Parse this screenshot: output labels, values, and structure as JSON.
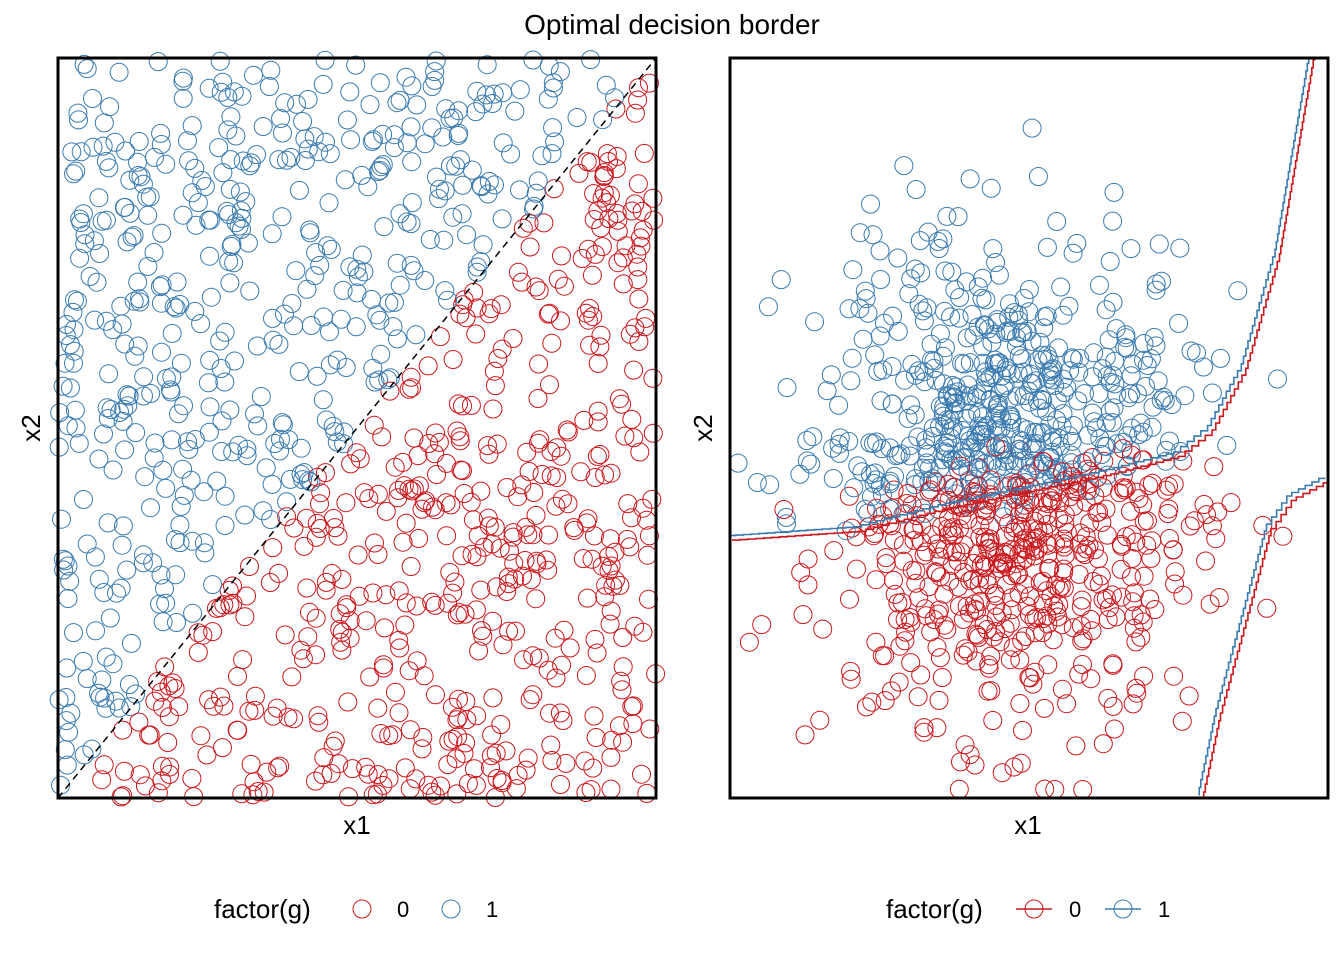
{
  "title": "Optimal decision border",
  "colors": {
    "class0": "#cb181d",
    "class1": "#3a7bb0",
    "border": "#000000",
    "boundary0": "#cb181d",
    "boundary1": "#3a7bb0"
  },
  "chart_data": [
    {
      "type": "scatter",
      "xlabel": "x1",
      "ylabel": "x2",
      "xlim": [
        0,
        1
      ],
      "ylim": [
        0,
        1
      ],
      "grid": false,
      "legend": {
        "title": "factor(g)",
        "placement": "bottom",
        "entries": [
          "0",
          "1"
        ],
        "marker": "open-circle"
      },
      "series": [
        {
          "name": "0",
          "distribution": "uniform below diagonal x2 < x1",
          "n": 500
        },
        {
          "name": "1",
          "distribution": "uniform above diagonal x2 > x1",
          "n": 500
        }
      ],
      "decision_boundary": {
        "style": "dashed",
        "points": [
          [
            0,
            0
          ],
          [
            1,
            1
          ]
        ]
      }
    },
    {
      "type": "scatter",
      "xlabel": "x1",
      "ylabel": "x2",
      "grid": false,
      "legend": {
        "title": "factor(g)",
        "placement": "bottom",
        "entries": [
          "0",
          "1"
        ],
        "marker": "line-circle"
      },
      "series": [
        {
          "name": "0",
          "distribution": "bivariate normal, lower half",
          "n": 500
        },
        {
          "name": "1",
          "distribution": "bivariate normal, upper half",
          "n": 500
        }
      ],
      "decision_boundaries": [
        {
          "name": "upper",
          "points": [
            [
              -3.5,
              -0.65
            ],
            [
              -2.0,
              -0.55
            ],
            [
              -1.0,
              -0.3
            ],
            [
              0.0,
              -0.1
            ],
            [
              1.0,
              0.1
            ],
            [
              1.8,
              0.3
            ],
            [
              2.2,
              0.6
            ],
            [
              2.6,
              1.3
            ],
            [
              3.0,
              2.6
            ],
            [
              3.4,
              4.8
            ],
            [
              3.6,
              6.0
            ]
          ]
        },
        {
          "name": "lower",
          "points": [
            [
              3.6,
              0.0
            ],
            [
              3.2,
              -0.2
            ],
            [
              2.9,
              -0.6
            ],
            [
              2.7,
              -1.3
            ],
            [
              2.5,
              -2.0
            ],
            [
              2.3,
              -2.7
            ],
            [
              2.1,
              -3.6
            ]
          ]
        }
      ],
      "xlim": [
        -3.5,
        3.6
      ],
      "ylim": [
        -3.6,
        4.8
      ]
    }
  ]
}
